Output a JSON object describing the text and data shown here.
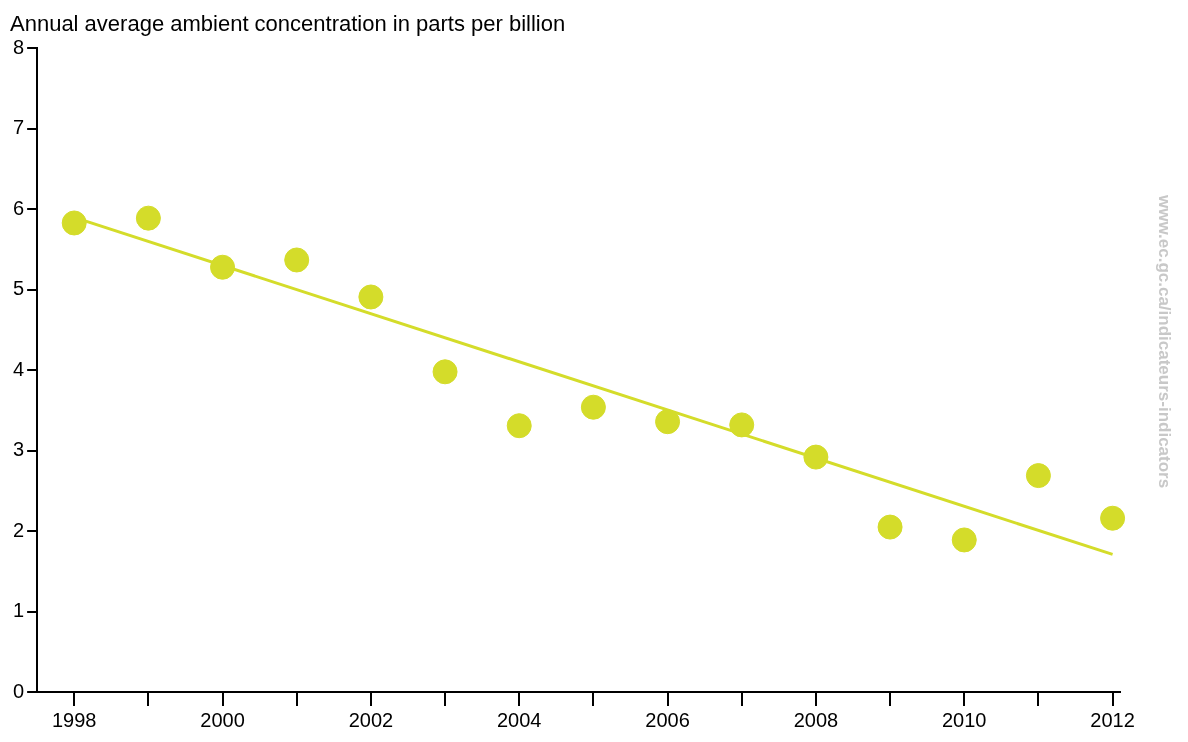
{
  "chart_data": {
    "type": "scatter",
    "title": "Annual average ambient concentration in parts per billion",
    "x": [
      1998,
      1999,
      2000,
      2001,
      2002,
      2003,
      2004,
      2005,
      2006,
      2007,
      2008,
      2009,
      2010,
      2011,
      2012
    ],
    "series": [
      {
        "color": "#d4dc2a",
        "values": [
          5.83,
          5.89,
          5.28,
          5.37,
          4.91,
          3.98,
          3.31,
          3.54,
          3.36,
          3.32,
          2.92,
          2.05,
          1.89,
          2.69,
          2.16
        ]
      },
      {
        "type": "line",
        "color": "#d4dc2a",
        "x": [
          1998,
          2012
        ],
        "values": [
          5.9,
          1.71
        ],
        "marker": "none"
      }
    ],
    "xlim": [
      1997.5,
      2012.1
    ],
    "xticks": [
      1998,
      {
        "value": 1999,
        "label": null
      },
      2000,
      {
        "value": 2001,
        "label": null
      },
      2002,
      {
        "value": 2003,
        "label": null
      },
      2004,
      {
        "value": 2005,
        "label": null
      },
      2006,
      {
        "value": 2007,
        "label": null
      },
      2008,
      {
        "value": 2009,
        "label": null
      },
      2010,
      {
        "value": 2011,
        "label": null
      },
      2012
    ],
    "ylim": [
      0,
      8
    ],
    "yticks": [
      0,
      1,
      2,
      3,
      4,
      5,
      6,
      7,
      8
    ],
    "grid": false,
    "legend": false,
    "marker": "circle",
    "annotations": [
      "www.ec.gc.ca/indicateurs-indicators"
    ]
  }
}
